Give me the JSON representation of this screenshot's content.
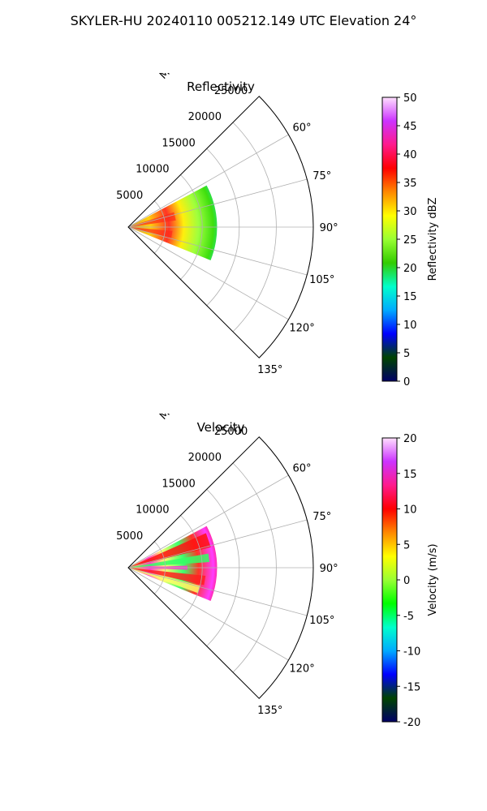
{
  "figure": {
    "suptitle": "SKYLER-HU  20240110  005212.149 UTC Elevation 24°"
  },
  "chart_data": [
    {
      "type": "polar-sector",
      "title": "Reflectivity",
      "radial_label": "Meters",
      "radial_ticks": [
        5000,
        10000,
        15000,
        20000,
        25000
      ],
      "rmax": 25000,
      "theta_range_deg": [
        45,
        135
      ],
      "angle_ticks": [
        60,
        75,
        90,
        105,
        120,
        135
      ],
      "data_extent": {
        "r_max": 12000,
        "theta_deg": [
          62,
          112
        ]
      },
      "colorbar": {
        "label": "Reflectivity dBZ",
        "min": 0,
        "max": 50,
        "ticks": [
          0,
          5,
          10,
          15,
          20,
          25,
          30,
          35,
          40,
          45,
          50
        ],
        "colors": [
          "#000066",
          "#004400",
          "#0000ff",
          "#00aaff",
          "#00ffcc",
          "#33cc00",
          "#99ff33",
          "#ffff00",
          "#ff8800",
          "#ff0000",
          "#ff1a8c",
          "#cc33ff",
          "#ffe0ff"
        ]
      }
    },
    {
      "type": "polar-sector",
      "title": "Velocity",
      "radial_label": "Meters",
      "radial_ticks": [
        5000,
        10000,
        15000,
        20000,
        25000
      ],
      "rmax": 25000,
      "theta_range_deg": [
        45,
        135
      ],
      "angle_ticks": [
        60,
        75,
        90,
        105,
        120,
        135
      ],
      "data_extent": {
        "r_max": 12000,
        "theta_deg": [
          62,
          112
        ]
      },
      "colorbar": {
        "label": "Velocity (m/s)",
        "min": -20,
        "max": 20,
        "ticks": [
          -20,
          -15,
          -10,
          -5,
          0,
          5,
          10,
          15,
          20
        ],
        "colors": [
          "#000066",
          "#004400",
          "#0000ff",
          "#00aaff",
          "#00ffcc",
          "#00ff00",
          "#99ff33",
          "#ffff00",
          "#ff8800",
          "#ff0000",
          "#ff1a8c",
          "#cc33ff",
          "#ffe0ff"
        ]
      }
    }
  ]
}
